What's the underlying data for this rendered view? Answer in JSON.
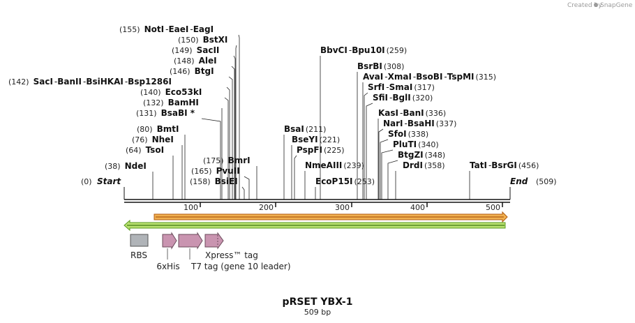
{
  "credit": {
    "text": "Created by",
    "brand": "SnapGene"
  },
  "title": "pRSET YBX-1",
  "subtitle": "509 bp",
  "ruler": {
    "ticks": [
      "100",
      "200",
      "300",
      "400",
      "500"
    ]
  },
  "ends": {
    "start": {
      "pos": "(0)",
      "label": "Start"
    },
    "end": {
      "label": "End",
      "pos": "(509)"
    }
  },
  "sites": [
    {
      "id": "noti",
      "pos": "(155)",
      "names": [
        "NotI",
        "EaeI",
        "EagI"
      ]
    },
    {
      "id": "bstxi",
      "pos": "(150)",
      "names": [
        "BstXI"
      ]
    },
    {
      "id": "sacii",
      "pos": "(149)",
      "names": [
        "SacII"
      ]
    },
    {
      "id": "alei",
      "pos": "(148)",
      "names": [
        "AleI"
      ]
    },
    {
      "id": "btgi",
      "pos": "(146)",
      "names": [
        "BtgI"
      ]
    },
    {
      "id": "saci",
      "pos": "(142)",
      "names": [
        "SacI",
        "BanII",
        "BsiHKAI",
        "Bsp1286I"
      ]
    },
    {
      "id": "eco53ki",
      "pos": "(140)",
      "names": [
        "Eco53kI"
      ]
    },
    {
      "id": "bamhi",
      "pos": "(132)",
      "names": [
        "BamHI"
      ]
    },
    {
      "id": "bsabi",
      "pos": "(131)",
      "names": [
        "BsaBI *"
      ]
    },
    {
      "id": "bmti",
      "pos": "(80)",
      "names": [
        "BmtI"
      ]
    },
    {
      "id": "nhei",
      "pos": "(76)",
      "names": [
        "NheI"
      ]
    },
    {
      "id": "tsoi",
      "pos": "(64)",
      "names": [
        "TsoI"
      ]
    },
    {
      "id": "ndei",
      "pos": "(38)",
      "names": [
        "NdeI"
      ]
    },
    {
      "id": "bmri",
      "pos": "(175)",
      "names": [
        "BmrI"
      ]
    },
    {
      "id": "pvuii",
      "pos": "(165)",
      "names": [
        "PvuII"
      ]
    },
    {
      "id": "bsiei",
      "pos": "(158)",
      "names": [
        "BsiEI"
      ]
    },
    {
      "id": "bbvci",
      "pos": "(259)",
      "names": [
        "BbvCI",
        "Bpu10I"
      ]
    },
    {
      "id": "bsrbi",
      "pos": "(308)",
      "names": [
        "BsrBI"
      ]
    },
    {
      "id": "avai",
      "pos": "(315)",
      "names": [
        "AvaI",
        "XmaI",
        "BsoBI",
        "TspMI"
      ]
    },
    {
      "id": "srfi",
      "pos": "(317)",
      "names": [
        "SrfI",
        "SmaI"
      ]
    },
    {
      "id": "sfii",
      "pos": "(320)",
      "names": [
        "SfiI",
        "BglI"
      ]
    },
    {
      "id": "kasi",
      "pos": "(336)",
      "names": [
        "KasI",
        "BanI"
      ]
    },
    {
      "id": "nari",
      "pos": "(337)",
      "names": [
        "NarI",
        "BsaHI"
      ]
    },
    {
      "id": "sfoi",
      "pos": "(338)",
      "names": [
        "SfoI"
      ]
    },
    {
      "id": "pluti",
      "pos": "(340)",
      "names": [
        "PluTI"
      ]
    },
    {
      "id": "btgzi",
      "pos": "(348)",
      "names": [
        "BtgZI"
      ]
    },
    {
      "id": "drdi",
      "pos": "(358)",
      "names": [
        "DrdI"
      ]
    },
    {
      "id": "bsai",
      "pos": "(211)",
      "names": [
        "BsaI"
      ]
    },
    {
      "id": "bseyi",
      "pos": "(221)",
      "names": [
        "BseYI"
      ]
    },
    {
      "id": "pspfi",
      "pos": "(225)",
      "names": [
        "PspFI"
      ]
    },
    {
      "id": "nmeaiii",
      "pos": "(239)",
      "names": [
        "NmeAIII"
      ]
    },
    {
      "id": "ecop15i",
      "pos": "(253)",
      "names": [
        "EcoP15I"
      ]
    },
    {
      "id": "tati",
      "pos": "(456)",
      "names": [
        "TatI",
        "BsrGI"
      ]
    }
  ],
  "features": {
    "rbs": "RBS",
    "his": "6xHis",
    "xpress": "Xpress™ tag",
    "t7": "T7 tag (gene 10 leader)"
  },
  "colors": {
    "orf_fill": "#f0b050",
    "orf_edge": "#b05a10",
    "primer_fill": "#b8e070",
    "primer_edge": "#5a9a20",
    "rbs": "#b0b4b8",
    "tag": "#c994b0",
    "tag_edge": "#6a4a5a"
  }
}
